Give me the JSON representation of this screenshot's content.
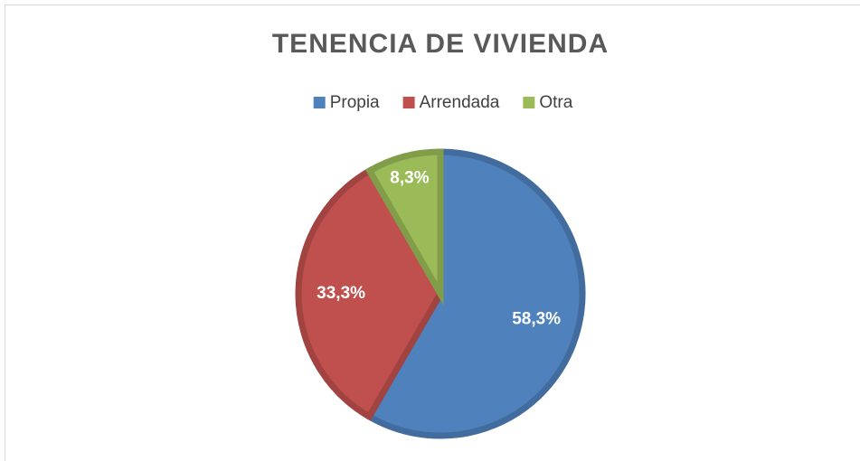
{
  "chart_data": {
    "type": "pie",
    "title": "TENENCIA DE VIVIENDA",
    "categories": [
      "Propia",
      "Arrendada",
      "Otra"
    ],
    "values": [
      58.3,
      33.3,
      8.3
    ],
    "value_labels": [
      "58,3%",
      "33,3%",
      "8,3%"
    ],
    "colors": [
      "#4f81bd",
      "#c0504d",
      "#9bbb59"
    ],
    "legend": "top"
  }
}
